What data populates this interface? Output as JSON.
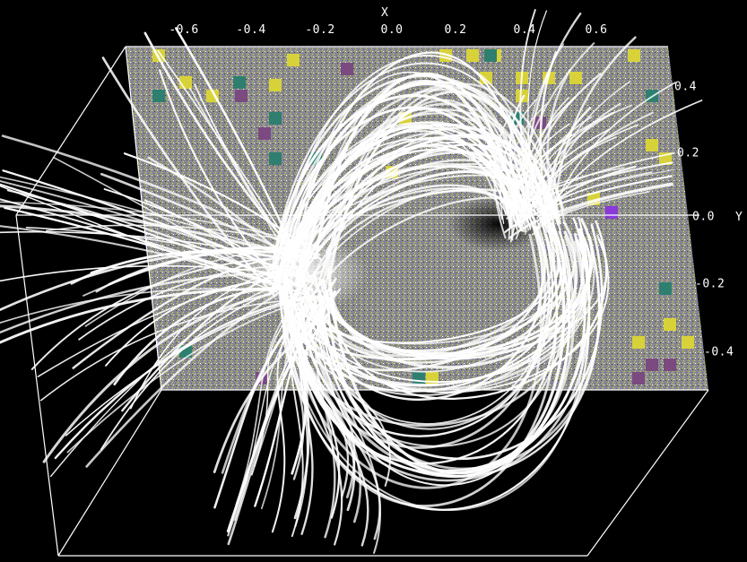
{
  "figure": {
    "x_axis": {
      "title": "X",
      "ticks": [
        "-0.6",
        "-0.4",
        "-0.2",
        "0.0",
        "0.2",
        "0.4",
        "0.6"
      ]
    },
    "y_axis": {
      "title": "Y",
      "ticks": [
        "0.4",
        "0.2",
        "0.0",
        "-0.2",
        "-0.4"
      ]
    },
    "colors": {
      "background": "#000000",
      "plane": "#8a8a86",
      "field_lines": "#ffffff",
      "frame": "#ffffff",
      "patch_yellow": "#d8d23a",
      "patch_teal": "#2e7f70",
      "patch_purple": "#7a4a80",
      "patch_violet": "#8a3ad8"
    }
  }
}
